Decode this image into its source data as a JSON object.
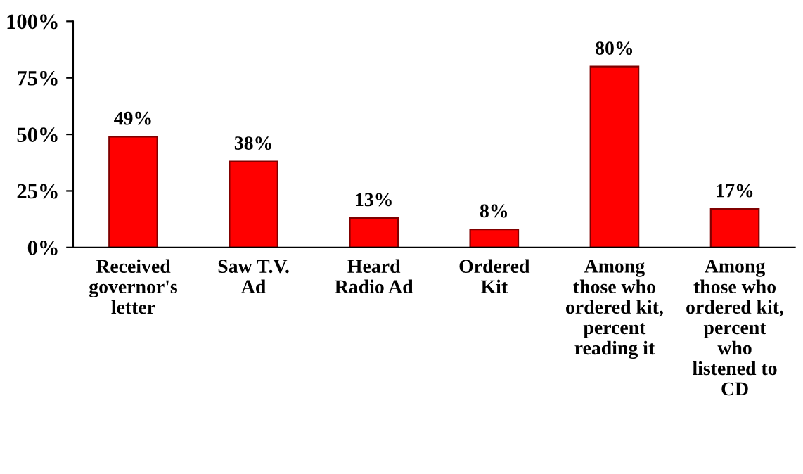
{
  "chart_data": {
    "type": "bar",
    "categories": [
      "Received\ngovernor's\nletter",
      "Saw T.V.\nAd",
      "Heard\nRadio Ad",
      "Ordered\nKit",
      "Among\nthose who\nordered kit,\npercent\nreading it",
      "Among\nthose who\nordered kit,\npercent\nwho\nlistened to\nCD"
    ],
    "values": [
      49,
      38,
      13,
      8,
      80,
      17
    ],
    "value_labels": [
      "49%",
      "38%",
      "13%",
      "8%",
      "80%",
      "17%"
    ],
    "color": "#ff0000",
    "ylim": [
      0,
      100
    ],
    "yticks": [
      {
        "value": 0,
        "label": "0%"
      },
      {
        "value": 25,
        "label": "25%"
      },
      {
        "value": 50,
        "label": "50%"
      },
      {
        "value": 75,
        "label": "75%"
      },
      {
        "value": 100,
        "label": "100%"
      }
    ],
    "grid": false,
    "legend": false
  }
}
